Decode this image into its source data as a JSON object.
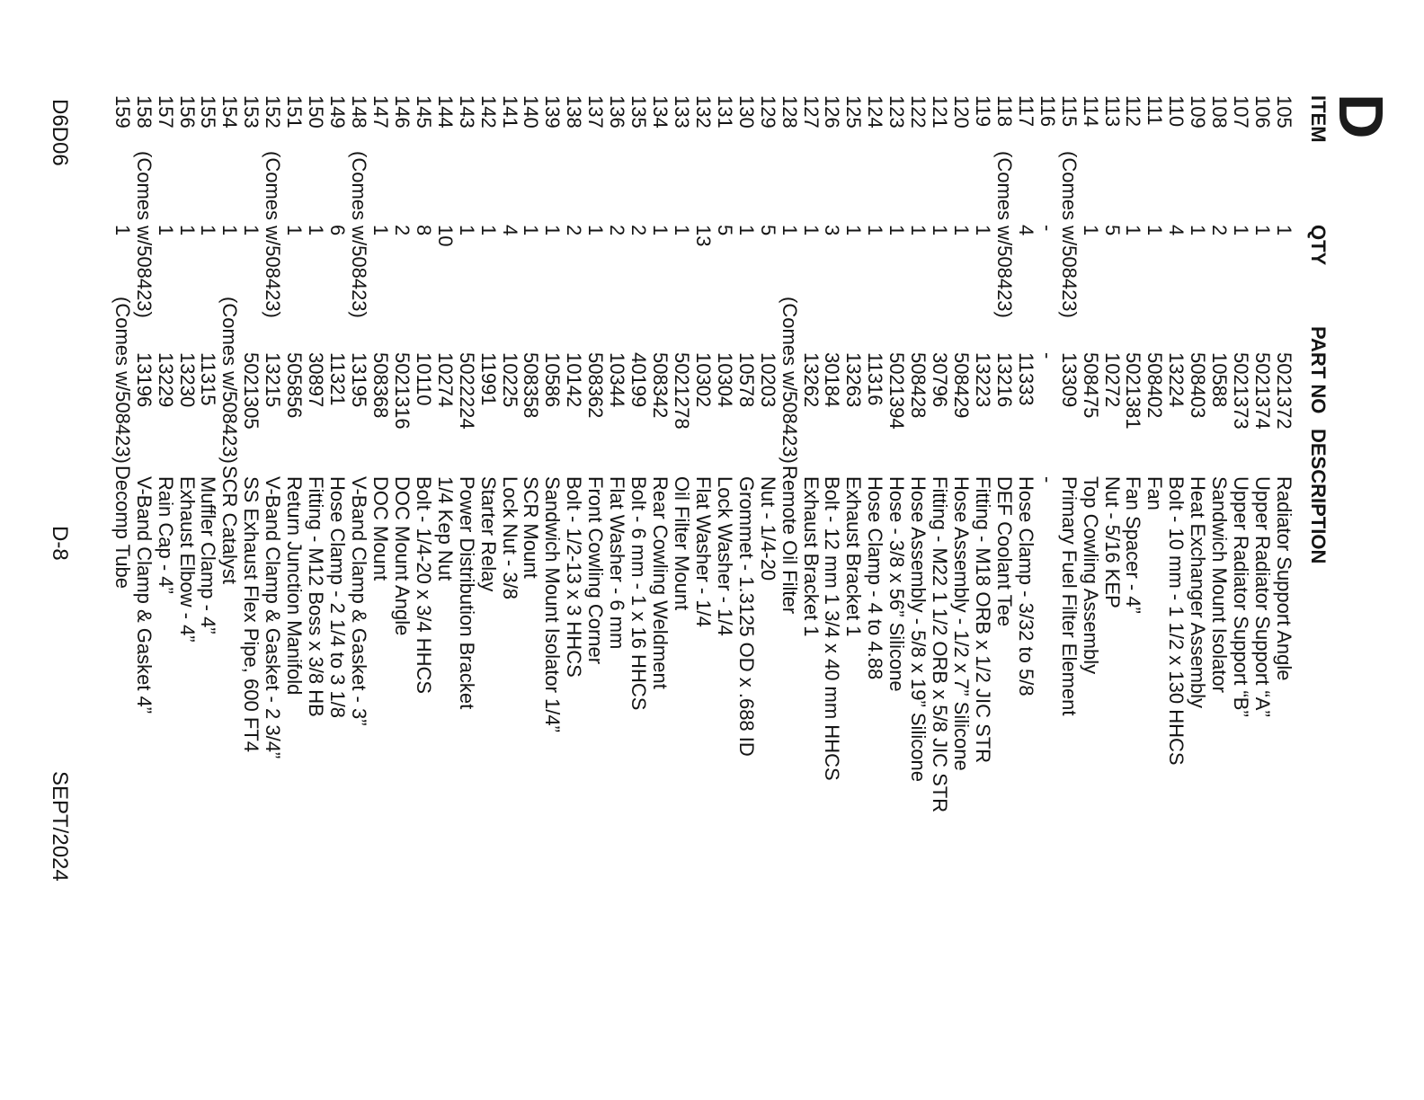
{
  "page": {
    "section_letter": "D",
    "footer": {
      "doc_code": "D6D06",
      "page_number": "D-8",
      "date": "SEPT/2024"
    }
  },
  "table": {
    "headers": {
      "item": "ITEM",
      "qty": "QTY",
      "part": "PART NO",
      "desc": "DESCRIPTION"
    },
    "comes_note": "(Comes w/508423)",
    "rows": [
      {
        "item": "105",
        "qty": "1",
        "part": "5021372",
        "desc": "Radiator Support Angle"
      },
      {
        "item": "106",
        "qty": "1",
        "part": "5021374",
        "desc": "Upper Radiator Support “A”"
      },
      {
        "item": "107",
        "qty": "1",
        "part": "5021373",
        "desc": "Upper Radiator Support “B”"
      },
      {
        "item": "108",
        "qty": "2",
        "part": "10588",
        "desc": "Sandwich Mount Isolator"
      },
      {
        "item": "109",
        "qty": "1",
        "part": "508403",
        "desc": "Heat Exchanger Assembly"
      },
      {
        "item": "110",
        "qty": "4",
        "part": "13224",
        "desc": "Bolt - 10 mm - 1 1/2 x 130 HHCS"
      },
      {
        "item": "111",
        "qty": "1",
        "part": "508402",
        "desc": "Fan"
      },
      {
        "item": "112",
        "qty": "1",
        "part": "5021381",
        "desc": "Fan Spacer - 4”"
      },
      {
        "item": "113",
        "qty": "5",
        "part": "10272",
        "desc": "Nut - 5/16 KEP"
      },
      {
        "item": "114",
        "qty": "1",
        "part": "508475",
        "desc": "Top Cowling Assembly"
      },
      {
        "item": "115",
        "qty": "(Comes w/508423)",
        "part": "13309",
        "desc": "Primary Fuel Filter Element"
      },
      {
        "item": "116",
        "qty": "-",
        "part": "-",
        "desc": "-"
      },
      {
        "item": "117",
        "qty": "4",
        "part": "11333",
        "desc": "Hose Clamp - 3/32 to 5/8"
      },
      {
        "item": "118",
        "qty": "(Comes w/508423)",
        "part": "13216",
        "desc": "DEF Coolant Tee"
      },
      {
        "item": "119",
        "qty": "1",
        "part": "13223",
        "desc": "Fitting - M18 ORB x 1/2 JIC STR"
      },
      {
        "item": "120",
        "qty": "1",
        "part": "508429",
        "desc": "Hose Assembly - 1/2 x 7” Silicone"
      },
      {
        "item": "121",
        "qty": "1",
        "part": "30796",
        "desc": "Fitting - M22  1 1/2 ORB x 5/8 JIC STR"
      },
      {
        "item": "122",
        "qty": "1",
        "part": "508428",
        "desc": "Hose Assembly - 5/8 x 19” Silicone"
      },
      {
        "item": "123",
        "qty": "1",
        "part": "5021394",
        "desc": "Hose - 3/8 x 56” Silicone"
      },
      {
        "item": "124",
        "qty": "1",
        "part": "11316",
        "desc": "Hose Clamp - 4 to 4.88"
      },
      {
        "item": "125",
        "qty": "1",
        "part": "13263",
        "desc": "Exhaust Bracket 1"
      },
      {
        "item": "126",
        "qty": "3",
        "part": "30184",
        "desc": "Bolt - 12 mm 1 3/4 x 40 mm HHCS"
      },
      {
        "item": "127",
        "qty": "1",
        "part": "13262",
        "desc": "Exhaust Bracket 1"
      },
      {
        "item": "128",
        "qty": "1",
        "part": "(Comes w/508423)",
        "desc": "Remote Oil Filter"
      },
      {
        "item": "129",
        "qty": "5",
        "part": "10203",
        "desc": "Nut - 1/4-20"
      },
      {
        "item": "130",
        "qty": "1",
        "part": "10578",
        "desc": "Grommet - 1.3125 OD x .688 ID"
      },
      {
        "item": "131",
        "qty": "5",
        "part": "10304",
        "desc": "Lock Washer - 1/4"
      },
      {
        "item": "132",
        "qty": "13",
        "part": "10302",
        "desc": "Flat Washer - 1/4"
      },
      {
        "item": "133",
        "qty": "1",
        "part": "5021278",
        "desc": "Oil Filter Mount"
      },
      {
        "item": "134",
        "qty": "1",
        "part": "508342",
        "desc": "Rear Cowling Weldment"
      },
      {
        "item": "135",
        "qty": "2",
        "part": "40199",
        "desc": "Bolt - 6 mm - 1 x 16 HHCS"
      },
      {
        "item": "136",
        "qty": "2",
        "part": "10344",
        "desc": "Flat Washer - 6 mm"
      },
      {
        "item": "137",
        "qty": "1",
        "part": "508362",
        "desc": "Front Cowling Corner"
      },
      {
        "item": "138",
        "qty": "2",
        "part": "10142",
        "desc": "Bolt - 1/2-13 x 3 HHCS"
      },
      {
        "item": "139",
        "qty": "1",
        "part": "10586",
        "desc": "Sandwich Mount Isolator 1/4”"
      },
      {
        "item": "140",
        "qty": "1",
        "part": "508358",
        "desc": "SCR Mount"
      },
      {
        "item": "141",
        "qty": "4",
        "part": "10225",
        "desc": "Lock Nut - 3/8"
      },
      {
        "item": "142",
        "qty": "1",
        "part": "11991",
        "desc": "Starter Relay"
      },
      {
        "item": "143",
        "qty": "1",
        "part": "5022224",
        "desc": "Power Distribution Bracket"
      },
      {
        "item": "144",
        "qty": "10",
        "part": "10274",
        "desc": "1/4 Kep Nut"
      },
      {
        "item": "145",
        "qty": "8",
        "part": "10110",
        "desc": "Bolt - 1/4-20 x 3/4 HHCS"
      },
      {
        "item": "146",
        "qty": "2",
        "part": "5021316",
        "desc": "DOC Mount Angle"
      },
      {
        "item": "147",
        "qty": "1",
        "part": "508368",
        "desc": "DOC Mount"
      },
      {
        "item": "148",
        "qty": "(Comes w/508423)",
        "part": "13195",
        "desc": "V-Band Clamp & Gasket - 3”"
      },
      {
        "item": "149",
        "qty": "6",
        "part": "11321",
        "desc": "Hose Clamp - 2 1/4 to 3 1/8"
      },
      {
        "item": "150",
        "qty": "1",
        "part": "30897",
        "desc": "Fitting - M12 Boss x 3/8 HB"
      },
      {
        "item": "151",
        "qty": "1",
        "part": "505856",
        "desc": "Return Junction Manifold"
      },
      {
        "item": "152",
        "qty": "(Comes w/508423)",
        "part": "13215",
        "desc": "V-Band Clamp & Gasket - 2 3/4”"
      },
      {
        "item": "153",
        "qty": "1",
        "part": "5021305",
        "desc": "SS Exhaust Flex Pipe, 600 FT4"
      },
      {
        "item": "154",
        "qty": "1",
        "part": "(Comes w/508423)",
        "desc": "SCR Catalyst"
      },
      {
        "item": "155",
        "qty": "1",
        "part": "11315",
        "desc": "Muffler Clamp - 4”"
      },
      {
        "item": "156",
        "qty": "1",
        "part": "13230",
        "desc": "Exhaust Elbow - 4”"
      },
      {
        "item": "157",
        "qty": "1",
        "part": "13229",
        "desc": "Rain Cap - 4”"
      },
      {
        "item": "158",
        "qty": "(Comes w/508423)",
        "part": "13196",
        "desc": "V-Band Clamp & Gasket 4”"
      },
      {
        "item": "159",
        "qty": "1",
        "part": "(Comes w/508423)",
        "desc": "Decomp Tube"
      }
    ]
  }
}
